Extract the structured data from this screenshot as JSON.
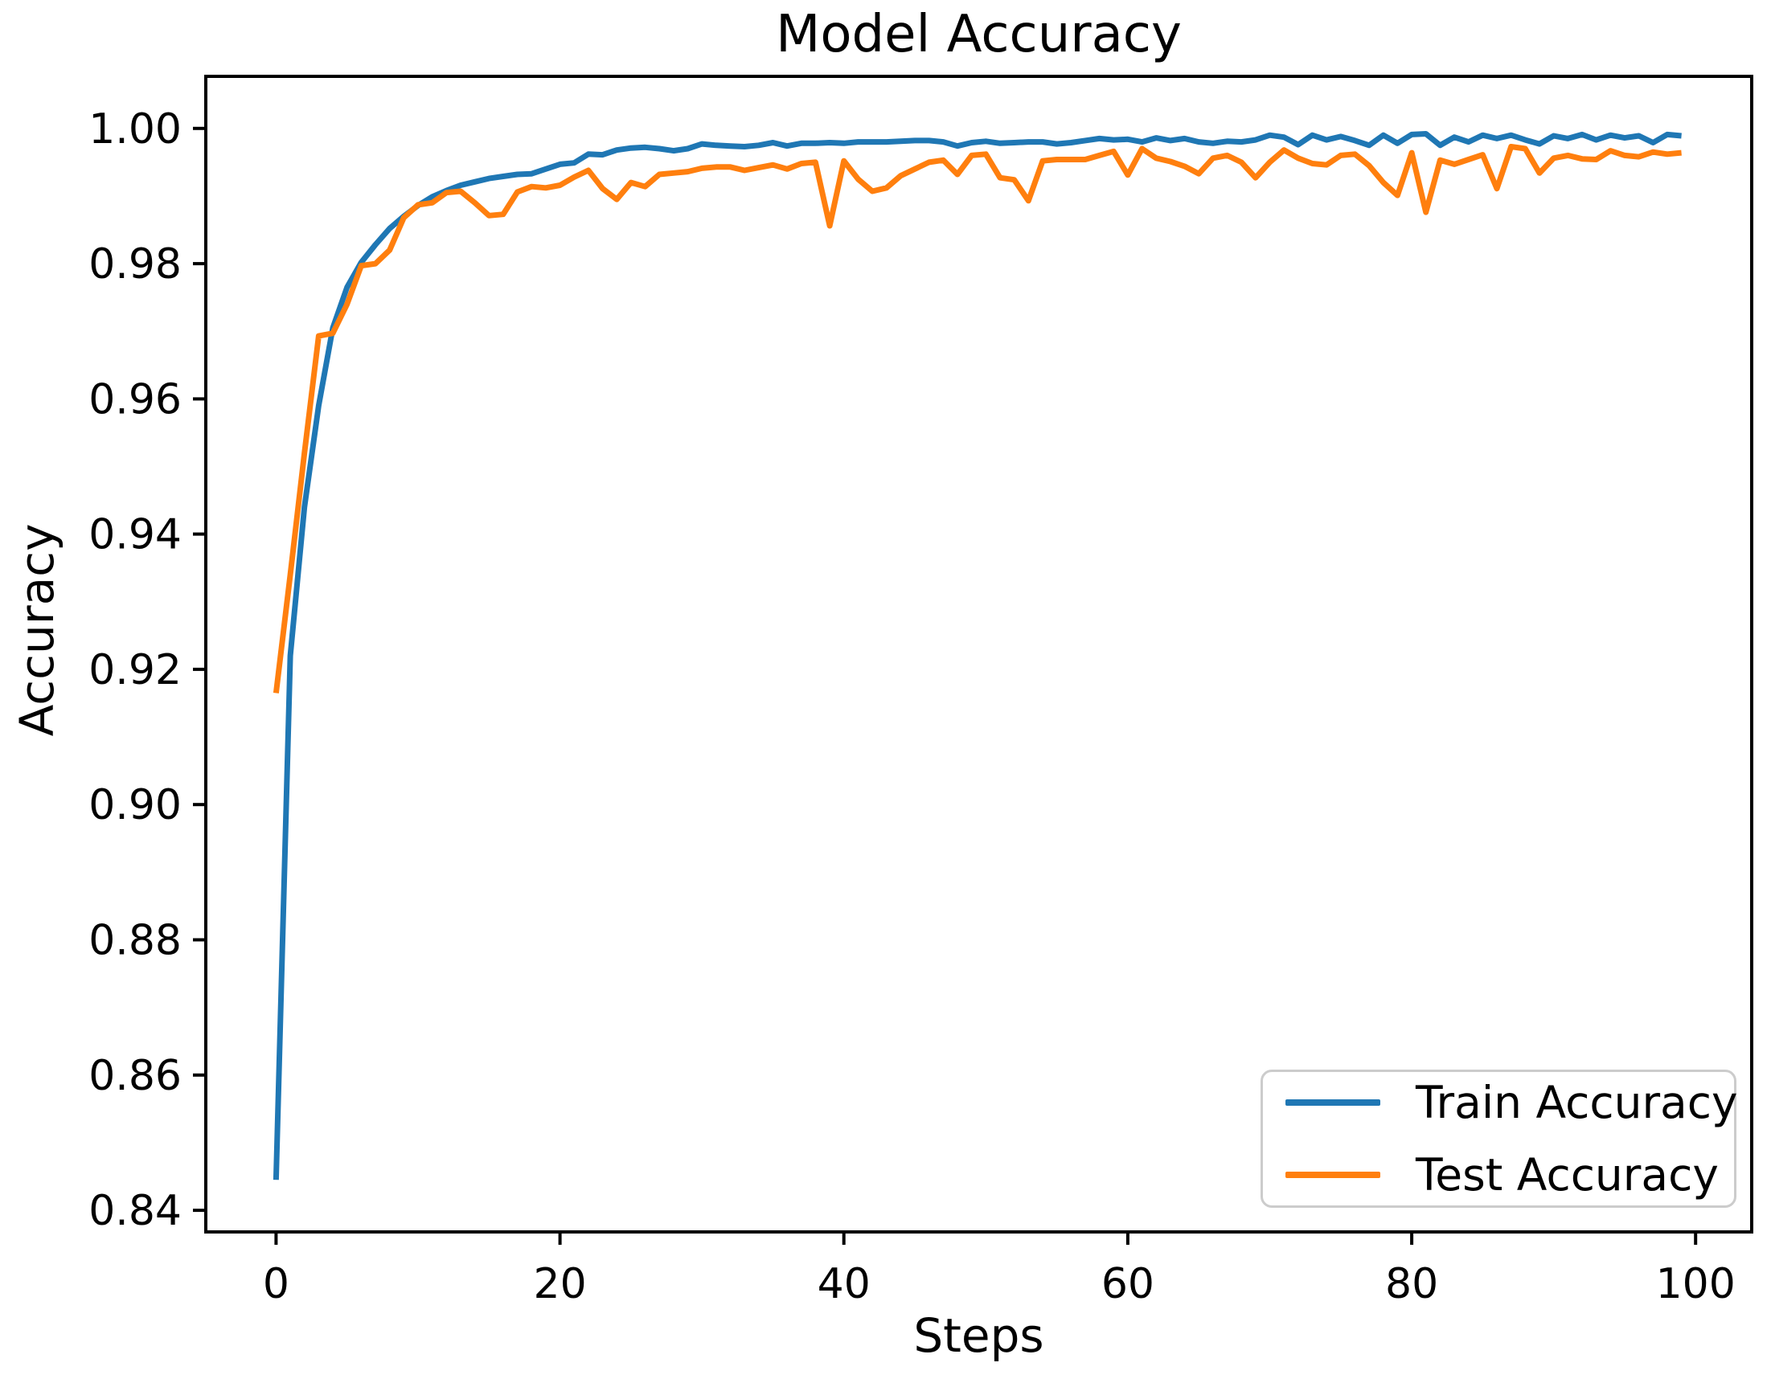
{
  "figure": {
    "title": "Model Accuracy",
    "xlabel": "Steps",
    "ylabel": "Accuracy"
  },
  "legend": {
    "position": "lower right",
    "entries": [
      {
        "label": "Train Accuracy",
        "color": "#1f77b4"
      },
      {
        "label": "Test Accuracy",
        "color": "#ff7f0e"
      }
    ]
  },
  "chart_data": {
    "type": "line",
    "title": "Model Accuracy",
    "xlabel": "Steps",
    "ylabel": "Accuracy",
    "grid": false,
    "legend_position": "lower right",
    "xticks": [
      "0",
      "20",
      "40",
      "60",
      "80",
      "100"
    ],
    "yticks": [
      "0.84",
      "0.86",
      "0.88",
      "0.90",
      "0.92",
      "0.94",
      "0.96",
      "0.98",
      "1.00"
    ],
    "xlim": [
      -4.95,
      103.95
    ],
    "ylim": [
      0.8368,
      1.0077
    ],
    "x": [
      0,
      1,
      2,
      3,
      4,
      5,
      6,
      7,
      8,
      9,
      10,
      11,
      12,
      13,
      14,
      15,
      16,
      17,
      18,
      19,
      20,
      21,
      22,
      23,
      24,
      25,
      26,
      27,
      28,
      29,
      30,
      31,
      32,
      33,
      34,
      35,
      36,
      37,
      38,
      39,
      40,
      41,
      42,
      43,
      44,
      45,
      46,
      47,
      48,
      49,
      50,
      51,
      52,
      53,
      54,
      55,
      56,
      57,
      58,
      59,
      60,
      61,
      62,
      63,
      64,
      65,
      66,
      67,
      68,
      69,
      70,
      71,
      72,
      73,
      74,
      75,
      76,
      77,
      78,
      79,
      80,
      81,
      82,
      83,
      84,
      85,
      86,
      87,
      88,
      89,
      90,
      91,
      92,
      93,
      94,
      95,
      96,
      97,
      98,
      99
    ],
    "series": [
      {
        "name": "Train Accuracy",
        "slug": "train-accuracy",
        "color": "#1f77b4",
        "values": [
          0.8445,
          0.922,
          0.944,
          0.959,
          0.9705,
          0.9765,
          0.9802,
          0.9828,
          0.9852,
          0.987,
          0.9886,
          0.9899,
          0.9908,
          0.9916,
          0.9921,
          0.9926,
          0.9929,
          0.9932,
          0.9933,
          0.994,
          0.9947,
          0.9949,
          0.9962,
          0.9961,
          0.9968,
          0.9971,
          0.9972,
          0.997,
          0.9967,
          0.997,
          0.9977,
          0.9975,
          0.9974,
          0.9973,
          0.9975,
          0.9979,
          0.9974,
          0.9978,
          0.9978,
          0.9979,
          0.9978,
          0.998,
          0.998,
          0.998,
          0.9981,
          0.9982,
          0.9982,
          0.998,
          0.9974,
          0.9979,
          0.9981,
          0.9978,
          0.9979,
          0.998,
          0.998,
          0.9977,
          0.9979,
          0.9982,
          0.9985,
          0.9983,
          0.9984,
          0.998,
          0.9986,
          0.9982,
          0.9985,
          0.998,
          0.9978,
          0.9981,
          0.998,
          0.9983,
          0.999,
          0.9987,
          0.9976,
          0.999,
          0.9983,
          0.9988,
          0.9982,
          0.9975,
          0.999,
          0.9978,
          0.9991,
          0.9992,
          0.9975,
          0.9987,
          0.998,
          0.999,
          0.9985,
          0.999,
          0.9983,
          0.9977,
          0.9989,
          0.9985,
          0.9991,
          0.9983,
          0.999,
          0.9986,
          0.9989,
          0.9979,
          0.9991,
          0.9989
        ]
      },
      {
        "name": "Test Accuracy",
        "slug": "test-accuracy",
        "color": "#ff7f0e",
        "values": [
          0.9165,
          0.934,
          0.952,
          0.9693,
          0.9697,
          0.974,
          0.9797,
          0.98,
          0.982,
          0.9868,
          0.9887,
          0.989,
          0.9905,
          0.9907,
          0.989,
          0.9871,
          0.9873,
          0.9906,
          0.9914,
          0.9912,
          0.9916,
          0.9928,
          0.9938,
          0.9911,
          0.9895,
          0.992,
          0.9914,
          0.9932,
          0.9934,
          0.9936,
          0.9941,
          0.9943,
          0.9943,
          0.9938,
          0.9942,
          0.9946,
          0.994,
          0.9948,
          0.995,
          0.9856,
          0.9952,
          0.9925,
          0.9907,
          0.9912,
          0.993,
          0.994,
          0.995,
          0.9953,
          0.9932,
          0.996,
          0.9962,
          0.9927,
          0.9924,
          0.9893,
          0.9952,
          0.9954,
          0.9954,
          0.9954,
          0.996,
          0.9966,
          0.9931,
          0.997,
          0.9956,
          0.9951,
          0.9944,
          0.9933,
          0.9956,
          0.996,
          0.995,
          0.9927,
          0.995,
          0.9968,
          0.9956,
          0.9948,
          0.9946,
          0.996,
          0.9962,
          0.9945,
          0.992,
          0.9901,
          0.9964,
          0.9876,
          0.9953,
          0.9947,
          0.9954,
          0.9961,
          0.9911,
          0.9973,
          0.997,
          0.9934,
          0.9956,
          0.996,
          0.9955,
          0.9954,
          0.9967,
          0.996,
          0.9958,
          0.9965,
          0.9962,
          0.9964
        ]
      }
    ]
  }
}
